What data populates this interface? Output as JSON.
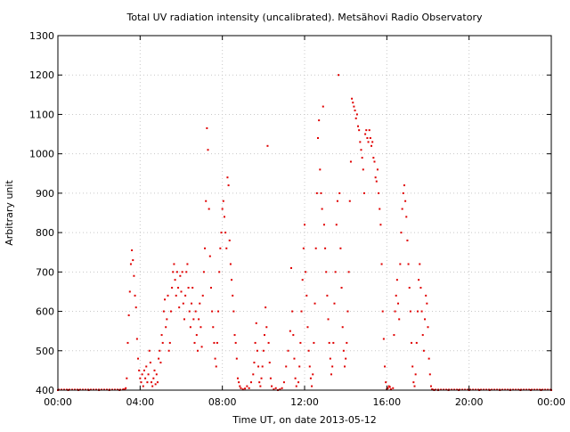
{
  "chart_data": {
    "type": "scatter",
    "title": "Total UV radiation intensity (uncalibrated). Metsähovi Radio Observatory",
    "xlabel": "Time UT, on date 2013-05-12",
    "ylabel": "Arbitrary unit",
    "xlim": [
      0,
      24
    ],
    "ylim": [
      400,
      1300
    ],
    "x_ticks": [
      0,
      4,
      8,
      12,
      16,
      20,
      24
    ],
    "x_tick_labels": [
      "00:00",
      "04:00",
      "08:00",
      "12:00",
      "16:00",
      "20:00",
      "00:00"
    ],
    "y_ticks": [
      400,
      500,
      600,
      700,
      800,
      900,
      1000,
      1100,
      1200,
      1300
    ],
    "y_tick_labels": [
      "400",
      "500",
      "600",
      "700",
      "800",
      "900",
      "1000",
      "1100",
      "1200",
      "1300"
    ],
    "grid": true,
    "marker_color": "#e00000",
    "series": [
      {
        "x_unit": "hours UT",
        "points": [
          [
            0.0,
            400
          ],
          [
            0.5,
            400
          ],
          [
            1.0,
            400
          ],
          [
            1.5,
            400
          ],
          [
            2.0,
            400
          ],
          [
            2.5,
            400
          ],
          [
            3.0,
            400
          ],
          [
            3.2,
            402
          ],
          [
            3.3,
            405
          ],
          [
            3.35,
            430
          ],
          [
            3.4,
            520
          ],
          [
            3.45,
            590
          ],
          [
            3.5,
            650
          ],
          [
            3.55,
            720
          ],
          [
            3.6,
            755
          ],
          [
            3.65,
            730
          ],
          [
            3.7,
            690
          ],
          [
            3.75,
            640
          ],
          [
            3.8,
            610
          ],
          [
            3.85,
            530
          ],
          [
            3.9,
            480
          ],
          [
            3.95,
            450
          ],
          [
            4.0,
            430
          ],
          [
            4.05,
            420
          ],
          [
            4.1,
            440
          ],
          [
            4.15,
            410
          ],
          [
            4.2,
            450
          ],
          [
            4.25,
            430
          ],
          [
            4.3,
            460
          ],
          [
            4.35,
            420
          ],
          [
            4.4,
            440
          ],
          [
            4.45,
            500
          ],
          [
            4.5,
            470
          ],
          [
            4.55,
            420
          ],
          [
            4.6,
            410
          ],
          [
            4.65,
            430
          ],
          [
            4.7,
            450
          ],
          [
            4.75,
            415
          ],
          [
            4.8,
            440
          ],
          [
            4.85,
            420
          ],
          [
            4.9,
            480
          ],
          [
            4.95,
            500
          ],
          [
            5.0,
            470
          ],
          [
            5.05,
            540
          ],
          [
            5.1,
            520
          ],
          [
            5.15,
            600
          ],
          [
            5.2,
            630
          ],
          [
            5.25,
            560
          ],
          [
            5.3,
            580
          ],
          [
            5.35,
            640
          ],
          [
            5.4,
            500
          ],
          [
            5.45,
            520
          ],
          [
            5.5,
            600
          ],
          [
            5.55,
            660
          ],
          [
            5.6,
            700
          ],
          [
            5.65,
            720
          ],
          [
            5.7,
            680
          ],
          [
            5.75,
            640
          ],
          [
            5.8,
            700
          ],
          [
            5.85,
            660
          ],
          [
            5.9,
            610
          ],
          [
            5.95,
            690
          ],
          [
            6.0,
            650
          ],
          [
            6.05,
            700
          ],
          [
            6.1,
            620
          ],
          [
            6.15,
            580
          ],
          [
            6.2,
            640
          ],
          [
            6.25,
            700
          ],
          [
            6.3,
            720
          ],
          [
            6.35,
            660
          ],
          [
            6.4,
            600
          ],
          [
            6.45,
            560
          ],
          [
            6.5,
            620
          ],
          [
            6.55,
            660
          ],
          [
            6.6,
            580
          ],
          [
            6.65,
            520
          ],
          [
            6.7,
            600
          ],
          [
            6.75,
            540
          ],
          [
            6.8,
            500
          ],
          [
            6.85,
            580
          ],
          [
            6.9,
            620
          ],
          [
            6.95,
            560
          ],
          [
            7.0,
            510
          ],
          [
            7.05,
            640
          ],
          [
            7.1,
            700
          ],
          [
            7.15,
            760
          ],
          [
            7.2,
            880
          ],
          [
            7.25,
            1065
          ],
          [
            7.3,
            1010
          ],
          [
            7.35,
            860
          ],
          [
            7.4,
            740
          ],
          [
            7.45,
            660
          ],
          [
            7.5,
            600
          ],
          [
            7.55,
            560
          ],
          [
            7.6,
            520
          ],
          [
            7.65,
            480
          ],
          [
            7.7,
            460
          ],
          [
            7.75,
            520
          ],
          [
            7.8,
            600
          ],
          [
            7.85,
            700
          ],
          [
            7.9,
            760
          ],
          [
            7.95,
            800
          ],
          [
            8.0,
            860
          ],
          [
            8.05,
            880
          ],
          [
            8.1,
            840
          ],
          [
            8.15,
            800
          ],
          [
            8.2,
            760
          ],
          [
            8.25,
            940
          ],
          [
            8.3,
            920
          ],
          [
            8.35,
            780
          ],
          [
            8.4,
            720
          ],
          [
            8.45,
            680
          ],
          [
            8.5,
            640
          ],
          [
            8.55,
            600
          ],
          [
            8.6,
            540
          ],
          [
            8.65,
            520
          ],
          [
            8.7,
            480
          ],
          [
            8.75,
            430
          ],
          [
            8.8,
            420
          ],
          [
            8.85,
            410
          ],
          [
            8.9,
            405
          ],
          [
            9.0,
            402
          ],
          [
            9.1,
            404
          ],
          [
            9.2,
            410
          ],
          [
            9.3,
            405
          ],
          [
            9.4,
            420
          ],
          [
            9.5,
            440
          ],
          [
            9.55,
            470
          ],
          [
            9.6,
            520
          ],
          [
            9.65,
            570
          ],
          [
            9.7,
            500
          ],
          [
            9.75,
            460
          ],
          [
            9.8,
            420
          ],
          [
            9.85,
            410
          ],
          [
            9.9,
            430
          ],
          [
            9.95,
            460
          ],
          [
            10.0,
            500
          ],
          [
            10.05,
            540
          ],
          [
            10.1,
            610
          ],
          [
            10.15,
            560
          ],
          [
            10.2,
            1020
          ],
          [
            10.25,
            520
          ],
          [
            10.3,
            470
          ],
          [
            10.35,
            430
          ],
          [
            10.4,
            410
          ],
          [
            10.5,
            402
          ],
          [
            10.6,
            405
          ],
          [
            10.7,
            400
          ],
          [
            10.8,
            402
          ],
          [
            10.9,
            405
          ],
          [
            11.0,
            420
          ],
          [
            11.1,
            460
          ],
          [
            11.2,
            500
          ],
          [
            11.3,
            550
          ],
          [
            11.35,
            710
          ],
          [
            11.4,
            600
          ],
          [
            11.45,
            540
          ],
          [
            11.5,
            480
          ],
          [
            11.55,
            430
          ],
          [
            11.6,
            410
          ],
          [
            11.7,
            420
          ],
          [
            11.75,
            460
          ],
          [
            11.8,
            520
          ],
          [
            11.85,
            600
          ],
          [
            11.9,
            680
          ],
          [
            11.95,
            760
          ],
          [
            12.0,
            820
          ],
          [
            12.05,
            700
          ],
          [
            12.1,
            640
          ],
          [
            12.15,
            560
          ],
          [
            12.2,
            500
          ],
          [
            12.25,
            460
          ],
          [
            12.3,
            430
          ],
          [
            12.35,
            410
          ],
          [
            12.4,
            440
          ],
          [
            12.45,
            520
          ],
          [
            12.5,
            620
          ],
          [
            12.55,
            760
          ],
          [
            12.6,
            900
          ],
          [
            12.65,
            1040
          ],
          [
            12.7,
            1085
          ],
          [
            12.75,
            960
          ],
          [
            12.8,
            900
          ],
          [
            12.85,
            860
          ],
          [
            12.9,
            1120
          ],
          [
            12.95,
            820
          ],
          [
            13.0,
            760
          ],
          [
            13.05,
            700
          ],
          [
            13.1,
            640
          ],
          [
            13.15,
            580
          ],
          [
            13.2,
            520
          ],
          [
            13.25,
            480
          ],
          [
            13.3,
            440
          ],
          [
            13.35,
            460
          ],
          [
            13.4,
            520
          ],
          [
            13.45,
            620
          ],
          [
            13.5,
            700
          ],
          [
            13.55,
            820
          ],
          [
            13.6,
            880
          ],
          [
            13.65,
            1200
          ],
          [
            13.7,
            900
          ],
          [
            13.75,
            760
          ],
          [
            13.8,
            660
          ],
          [
            13.85,
            560
          ],
          [
            13.9,
            500
          ],
          [
            13.95,
            460
          ],
          [
            14.0,
            480
          ],
          [
            14.05,
            520
          ],
          [
            14.1,
            600
          ],
          [
            14.15,
            700
          ],
          [
            14.2,
            880
          ],
          [
            14.25,
            980
          ],
          [
            14.3,
            1140
          ],
          [
            14.35,
            1130
          ],
          [
            14.4,
            1120
          ],
          [
            14.45,
            1110
          ],
          [
            14.5,
            1090
          ],
          [
            14.55,
            1100
          ],
          [
            14.6,
            1070
          ],
          [
            14.65,
            1060
          ],
          [
            14.7,
            1030
          ],
          [
            14.75,
            1010
          ],
          [
            14.8,
            990
          ],
          [
            14.85,
            960
          ],
          [
            14.9,
            900
          ],
          [
            14.95,
            1050
          ],
          [
            15.0,
            1060
          ],
          [
            15.05,
            1040
          ],
          [
            15.1,
            1030
          ],
          [
            15.15,
            1060
          ],
          [
            15.2,
            1040
          ],
          [
            15.25,
            1020
          ],
          [
            15.3,
            1030
          ],
          [
            15.35,
            990
          ],
          [
            15.4,
            980
          ],
          [
            15.45,
            940
          ],
          [
            15.5,
            930
          ],
          [
            15.55,
            960
          ],
          [
            15.6,
            900
          ],
          [
            15.65,
            860
          ],
          [
            15.7,
            820
          ],
          [
            15.75,
            720
          ],
          [
            15.8,
            600
          ],
          [
            15.85,
            530
          ],
          [
            15.9,
            460
          ],
          [
            15.95,
            420
          ],
          [
            16.0,
            402
          ],
          [
            16.05,
            405
          ],
          [
            16.1,
            410
          ],
          [
            16.15,
            408
          ],
          [
            16.2,
            402
          ],
          [
            16.3,
            405
          ],
          [
            16.35,
            540
          ],
          [
            16.4,
            600
          ],
          [
            16.45,
            640
          ],
          [
            16.5,
            680
          ],
          [
            16.55,
            620
          ],
          [
            16.6,
            580
          ],
          [
            16.65,
            720
          ],
          [
            16.7,
            800
          ],
          [
            16.75,
            860
          ],
          [
            16.8,
            900
          ],
          [
            16.85,
            920
          ],
          [
            16.9,
            880
          ],
          [
            16.95,
            840
          ],
          [
            17.0,
            780
          ],
          [
            17.05,
            720
          ],
          [
            17.1,
            660
          ],
          [
            17.15,
            600
          ],
          [
            17.2,
            520
          ],
          [
            17.25,
            460
          ],
          [
            17.3,
            420
          ],
          [
            17.35,
            410
          ],
          [
            17.4,
            440
          ],
          [
            17.45,
            520
          ],
          [
            17.5,
            600
          ],
          [
            17.55,
            680
          ],
          [
            17.6,
            720
          ],
          [
            17.65,
            660
          ],
          [
            17.7,
            600
          ],
          [
            17.75,
            540
          ],
          [
            17.8,
            500
          ],
          [
            17.85,
            580
          ],
          [
            17.9,
            640
          ],
          [
            17.95,
            620
          ],
          [
            18.0,
            560
          ],
          [
            18.05,
            480
          ],
          [
            18.1,
            440
          ],
          [
            18.15,
            410
          ],
          [
            18.2,
            402
          ],
          [
            18.3,
            400
          ],
          [
            18.5,
            400
          ],
          [
            19.0,
            400
          ],
          [
            19.5,
            400
          ],
          [
            20.0,
            400
          ],
          [
            20.5,
            400
          ],
          [
            21.0,
            400
          ],
          [
            21.5,
            400
          ],
          [
            22.0,
            400
          ],
          [
            22.5,
            400
          ],
          [
            23.0,
            400
          ],
          [
            23.5,
            400
          ],
          [
            24.0,
            400
          ]
        ]
      }
    ]
  }
}
